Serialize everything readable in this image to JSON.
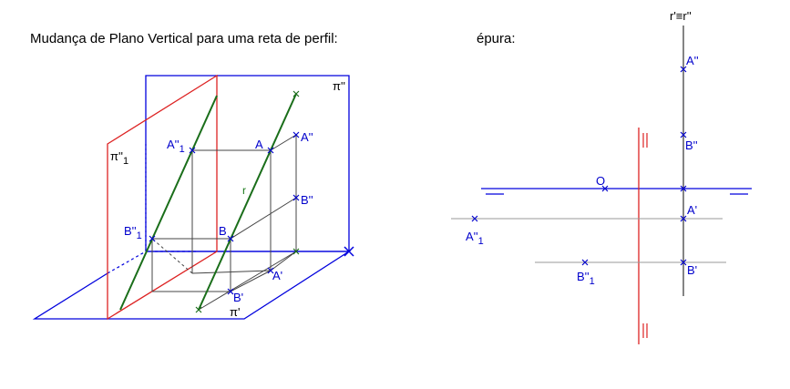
{
  "captions": {
    "left": "Mudança de Plano Vertical para uma reta de perfil:",
    "right": "épura:"
  },
  "labels_3d": {
    "pi2": "π''",
    "pi2_1": "π''",
    "pi2_1_sub": "1",
    "pi1": "π'",
    "A1": "A''",
    "A1_sub": "1",
    "A": "A",
    "A2": "A''",
    "r": "r",
    "B2": "B''",
    "B1": "B''",
    "B1_sub": "1",
    "B": "B",
    "A_prime": "A'",
    "B_prime": "B'"
  },
  "labels_epura": {
    "r_proj": "r'≡r''",
    "A2": "A''",
    "B2": "B''",
    "O": "O",
    "A_prime": "A'",
    "B_prime": "B'",
    "A1": "A''",
    "A1_sub": "1",
    "B1": "B''",
    "B1_sub": "1"
  },
  "colors": {
    "plane_blue": "#0000dd",
    "plane_red": "#dd2222",
    "line_green": "#1a6e1a",
    "construction": "#555555",
    "label_blue": "#0000cc"
  }
}
